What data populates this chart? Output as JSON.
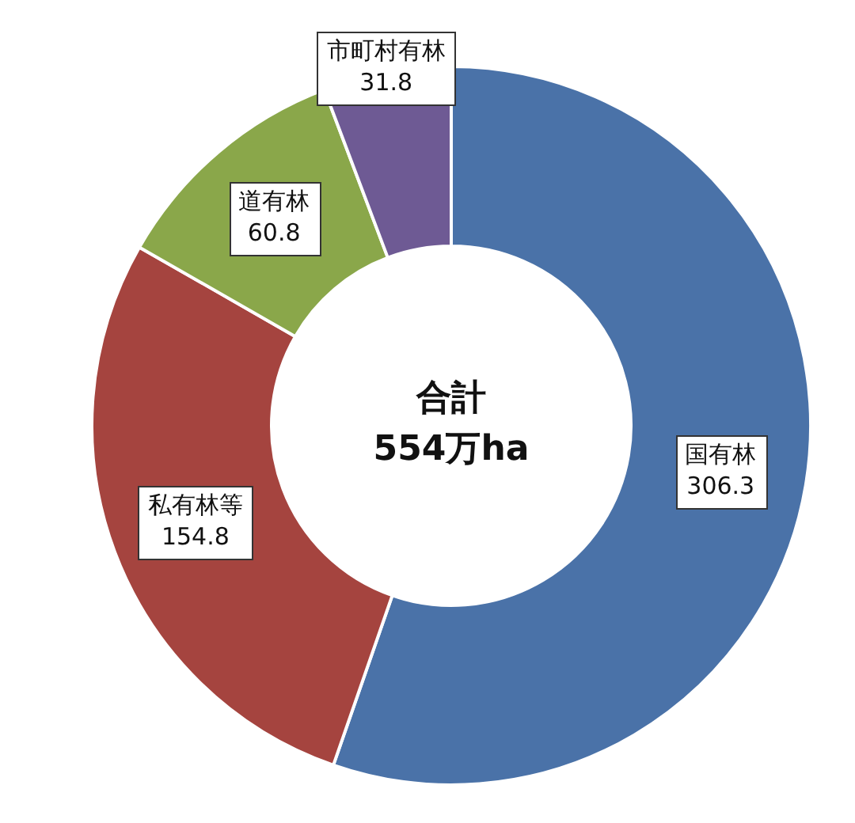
{
  "chart_data": {
    "type": "donut",
    "categories": [
      "国有林",
      "私有林等",
      "道有林",
      "市町村有林"
    ],
    "values": [
      306.3,
      154.8,
      60.8,
      31.8
    ],
    "colors": [
      "#4a72a8",
      "#a5443f",
      "#8aa74a",
      "#6e5a94"
    ],
    "data_labels": true,
    "legend": false,
    "annotations": [
      "合計\n554万ha"
    ]
  }
}
